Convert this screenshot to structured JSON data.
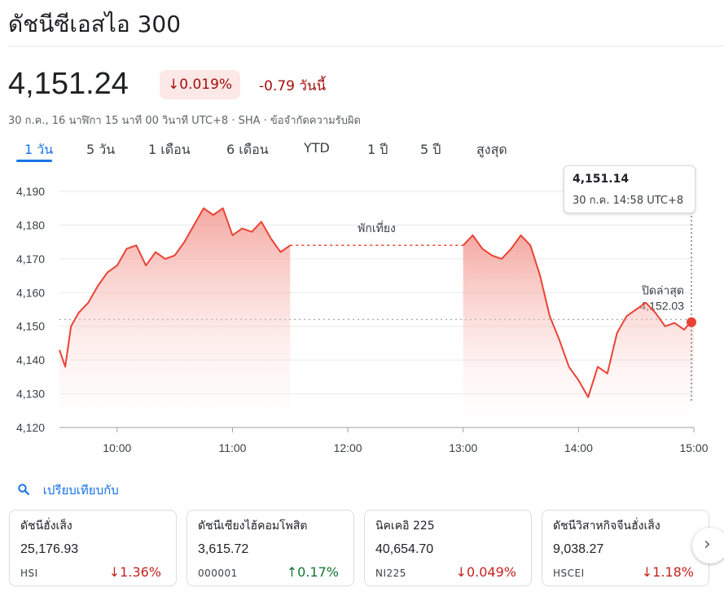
{
  "header": {
    "title": "ดัชนีซีเอสไอ 300"
  },
  "quote": {
    "price": "4,151.24",
    "change_pct": "0.019%",
    "change_abs": "-0.79 วันนี้",
    "meta": "30 ก.ค., 16 นาฬิกา 15 นาที 00 วินาที UTC+8 · SHA · ข้อจำกัดความรับผิด"
  },
  "tabs": [
    "1 วัน",
    "5 วัน",
    "1 เดือน",
    "6 เดือน",
    "YTD",
    "1 ปี",
    "5 ปี",
    "สูงสุด"
  ],
  "tooltip": {
    "value": "4,151.14",
    "time": "30 ก.ค. 14:58 UTC+8"
  },
  "compare_label": "เปรียบเทียบกับ",
  "cards": [
    {
      "name": "ดัชนีฮั่งเส็ง",
      "value": "25,176.93",
      "symbol": "HSI",
      "change": "1.36%",
      "direction": "down"
    },
    {
      "name": "ดัชนีเซียงไฮ้คอมโพสิต",
      "value": "3,615.72",
      "symbol": "000001",
      "change": "0.17%",
      "direction": "up"
    },
    {
      "name": "นิคเคอิ 225",
      "value": "40,654.70",
      "symbol": "NI225",
      "change": "0.049%",
      "direction": "down"
    },
    {
      "name": "ดัชนีวิสาหกิจจีนฮั่งเส็ง",
      "value": "9,038.27",
      "symbol": "HSCEI",
      "change": "1.18%",
      "direction": "down"
    }
  ],
  "colors": {
    "line": "#ea4335",
    "down": "#c5221f",
    "up": "#137333",
    "accent": "#1a73e8"
  },
  "chart_data": {
    "type": "line",
    "y_ticks": [
      4120,
      4130,
      4140,
      4150,
      4160,
      4170,
      4180,
      4190
    ],
    "y_tick_labels": [
      "4,120",
      "4,130",
      "4,140",
      "4,150",
      "4,160",
      "4,170",
      "4,180",
      "4,190"
    ],
    "x_ticks": [
      "10:00",
      "11:00",
      "12:00",
      "13:00",
      "14:00",
      "15:00"
    ],
    "ylim": [
      4120,
      4190
    ],
    "break_label": "พักเที่ยง",
    "previous_close_label": "ปิดล่าสุด",
    "previous_close_value": "4,152.03",
    "previous_close": 4152.03,
    "morning": {
      "times": [
        "09:30",
        "09:33",
        "09:36",
        "09:40",
        "09:45",
        "09:50",
        "09:55",
        "10:00",
        "10:05",
        "10:10",
        "10:15",
        "10:20",
        "10:25",
        "10:30",
        "10:35",
        "10:40",
        "10:45",
        "10:50",
        "10:55",
        "11:00",
        "11:05",
        "11:10",
        "11:15",
        "11:20",
        "11:25",
        "11:30"
      ],
      "values": [
        4143,
        4138,
        4150,
        4154,
        4157,
        4162,
        4166,
        4168,
        4173,
        4174,
        4168,
        4172,
        4170,
        4171,
        4175,
        4180,
        4185,
        4183,
        4185,
        4177,
        4179,
        4178,
        4181,
        4176,
        4172,
        4174
      ]
    },
    "afternoon": {
      "times": [
        "13:00",
        "13:05",
        "13:10",
        "13:15",
        "13:20",
        "13:25",
        "13:30",
        "13:35",
        "13:40",
        "13:45",
        "13:50",
        "13:55",
        "14:00",
        "14:05",
        "14:10",
        "14:15",
        "14:20",
        "14:25",
        "14:30",
        "14:35",
        "14:40",
        "14:45",
        "14:50",
        "14:55",
        "14:58",
        "15:00"
      ],
      "values": [
        4174,
        4177,
        4173,
        4171,
        4170,
        4173,
        4177,
        4174,
        4165,
        4153,
        4146,
        4138,
        4134,
        4129,
        4138,
        4136,
        4148,
        4153,
        4155,
        4157,
        4154,
        4150,
        4151,
        4149,
        4151.14,
        4151.24
      ]
    }
  }
}
